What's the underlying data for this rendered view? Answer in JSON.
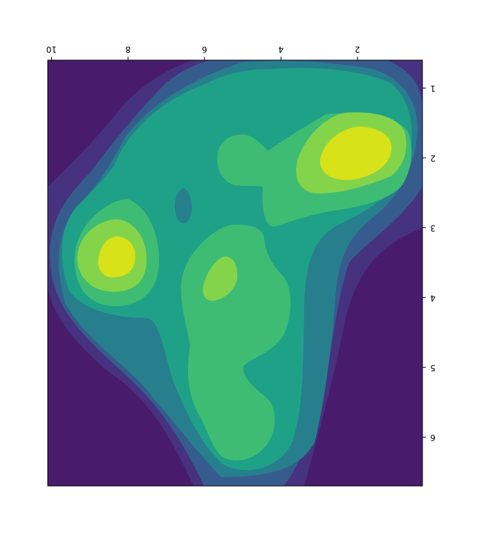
{
  "chart_data": {
    "type": "heatmap",
    "title": "",
    "xlabel": "",
    "ylabel": "",
    "orientation": "rotated 180 degrees (x axis on top, decreasing left-to-right; y axis on right, increasing downward)",
    "xlim": [
      10.1,
      0.3
    ],
    "ylim": [
      0.6,
      6.7
    ],
    "x_ticks": [
      10,
      8,
      6,
      4,
      2
    ],
    "y_ticks": [
      1,
      2,
      3,
      4,
      5,
      6
    ],
    "grid": false,
    "legend": "none",
    "levels": 6,
    "colormap": [
      "#481b6d",
      "#46327e",
      "#365c8d",
      "#277f8e",
      "#1fa187",
      "#3fbc73",
      "#84d44b",
      "#d8e219"
    ],
    "density_peaks": [
      {
        "x": 2.1,
        "y": 1.8,
        "level": "highest"
      },
      {
        "x": 8.3,
        "y": 3.3,
        "level": "highest"
      },
      {
        "x": 5.2,
        "y": 3.6,
        "level": "high"
      }
    ]
  }
}
